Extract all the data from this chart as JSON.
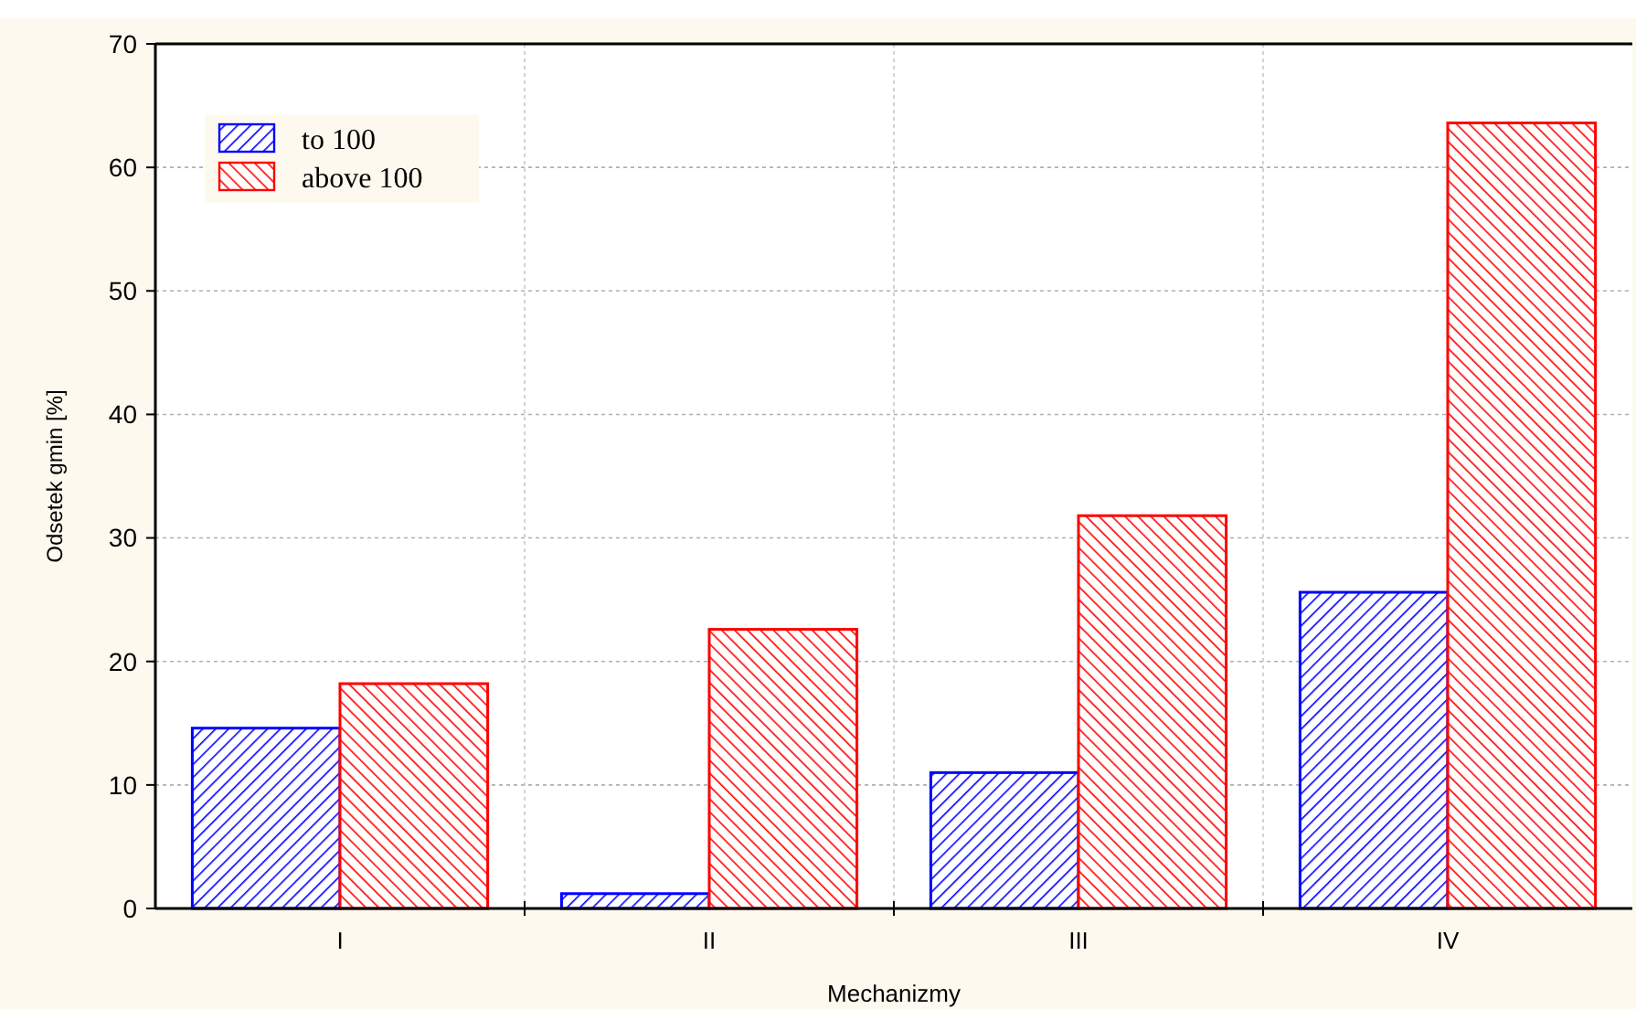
{
  "chart_data": {
    "type": "bar",
    "xlabel": "Mechanizmy",
    "ylabel": "Odsetek gmin [%]",
    "categories": [
      "I",
      "II",
      "III",
      "IV"
    ],
    "series": [
      {
        "name": "to 100",
        "color": "#0000ff",
        "values": [
          14.6,
          1.2,
          11.0,
          25.6
        ]
      },
      {
        "name": "above 100",
        "color": "#ff0000",
        "values": [
          18.2,
          22.6,
          31.8,
          63.6
        ]
      }
    ],
    "ylim": [
      0,
      70
    ],
    "yticks": [
      0,
      10,
      20,
      30,
      40,
      50,
      60,
      70
    ],
    "grid": true,
    "legend": "top left"
  }
}
